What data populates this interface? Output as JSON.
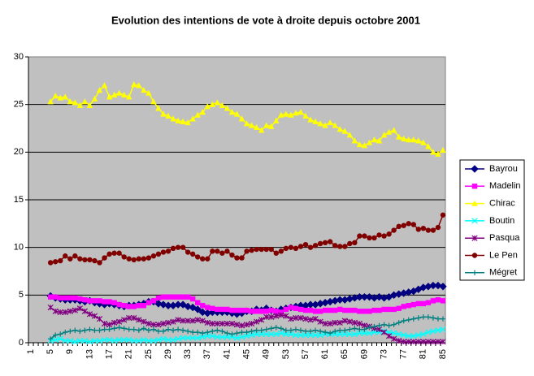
{
  "chart_data": {
    "type": "line",
    "title": "Evolution des intentions de vote à droite depuis octobre 2001",
    "categories": [
      "1",
      null,
      null,
      null,
      "5",
      null,
      null,
      null,
      "9",
      null,
      null,
      null,
      "13",
      null,
      null,
      null,
      "17",
      null,
      null,
      null,
      "21",
      null,
      null,
      null,
      "25",
      null,
      null,
      null,
      "29",
      null,
      null,
      null,
      "33",
      null,
      null,
      null,
      "37",
      null,
      null,
      null,
      "41",
      null,
      null,
      null,
      "45",
      null,
      null,
      null,
      "49",
      null,
      null,
      null,
      "53",
      null,
      null,
      null,
      "57",
      null,
      null,
      null,
      "61",
      null,
      null,
      null,
      "65",
      null,
      null,
      null,
      "69",
      null,
      null,
      null,
      "73",
      null,
      null,
      null,
      "77",
      null,
      null,
      null,
      "81",
      null,
      null,
      null,
      "85"
    ],
    "ylim": [
      0,
      30
    ],
    "yticks": [
      0,
      5,
      10,
      15,
      20,
      25,
      30
    ],
    "grid": true,
    "legend": "right",
    "series": [
      {
        "name": "Bayrou",
        "color": "#000080",
        "marker": "diamond",
        "values": [
          null,
          null,
          null,
          null,
          4.9,
          4.7,
          4.6,
          4.5,
          4.5,
          4.5,
          4.4,
          4.3,
          4.4,
          4.2,
          4.1,
          4.0,
          4.1,
          4.0,
          3.9,
          3.8,
          3.9,
          3.9,
          4.0,
          4.1,
          4.3,
          4.3,
          4.1,
          4.0,
          3.9,
          3.9,
          4.0,
          4.0,
          3.8,
          3.7,
          3.5,
          3.2,
          3.1,
          3.2,
          3.2,
          3.2,
          3.2,
          3.1,
          3.0,
          3.1,
          3.3,
          3.3,
          3.5,
          3.4,
          3.6,
          3.4,
          3.3,
          3.5,
          3.6,
          3.7,
          3.8,
          3.9,
          3.9,
          4.0,
          4.0,
          4.1,
          4.2,
          4.3,
          4.4,
          4.5,
          4.5,
          4.6,
          4.7,
          4.8,
          4.8,
          4.8,
          4.7,
          4.8,
          4.7,
          4.8,
          5.0,
          5.1,
          5.2,
          5.3,
          5.4,
          5.6,
          5.8,
          5.9,
          6.0,
          6.0,
          5.9
        ]
      },
      {
        "name": "Madelin",
        "color": "#ff00ff",
        "marker": "square",
        "values": [
          null,
          null,
          null,
          null,
          4.8,
          4.8,
          4.7,
          4.7,
          4.7,
          4.7,
          4.6,
          4.5,
          4.4,
          4.4,
          4.4,
          4.3,
          4.3,
          4.2,
          4.0,
          3.9,
          3.8,
          3.8,
          3.9,
          3.9,
          4.2,
          4.4,
          4.7,
          4.8,
          4.8,
          4.8,
          4.8,
          4.8,
          4.8,
          4.6,
          4.2,
          3.9,
          3.7,
          3.6,
          3.5,
          3.5,
          3.5,
          3.4,
          3.4,
          3.4,
          3.4,
          3.3,
          3.3,
          3.3,
          3.3,
          3.4,
          3.3,
          3.2,
          3.5,
          3.7,
          3.6,
          3.5,
          3.4,
          3.4,
          3.3,
          3.3,
          3.4,
          3.4,
          3.4,
          3.5,
          3.4,
          3.4,
          3.4,
          3.3,
          3.3,
          3.3,
          3.4,
          3.4,
          3.5,
          3.5,
          3.5,
          3.6,
          3.8,
          3.9,
          4.0,
          4.1,
          4.1,
          4.2,
          4.4,
          4.5,
          4.4
        ]
      },
      {
        "name": "Chirac",
        "color": "#ffff00",
        "marker": "triangle",
        "values": [
          null,
          null,
          null,
          null,
          25.3,
          25.9,
          25.7,
          25.8,
          25.3,
          25.2,
          24.9,
          25.3,
          24.9,
          25.6,
          26.5,
          27.0,
          25.8,
          26.0,
          26.2,
          26.0,
          25.8,
          27.1,
          27.0,
          26.5,
          26.2,
          25.3,
          24.6,
          24.0,
          23.8,
          23.5,
          23.3,
          23.2,
          23.1,
          23.5,
          23.9,
          24.2,
          24.8,
          25.0,
          25.2,
          24.9,
          24.6,
          24.2,
          24.0,
          23.5,
          23.0,
          22.8,
          22.6,
          22.3,
          22.8,
          22.7,
          23.3,
          23.9,
          24.0,
          23.9,
          24.1,
          24.2,
          23.8,
          23.4,
          23.2,
          23.0,
          22.8,
          23.1,
          22.8,
          22.4,
          22.2,
          21.8,
          21.2,
          20.8,
          20.7,
          21.0,
          21.3,
          21.2,
          21.8,
          22.1,
          22.3,
          21.6,
          21.4,
          21.3,
          21.3,
          21.2,
          21.0,
          20.6,
          20.0,
          19.8,
          20.2
        ]
      },
      {
        "name": "Boutin",
        "color": "#00ffff",
        "marker": "x",
        "values": [
          null,
          null,
          null,
          null,
          0.2,
          0.3,
          0.4,
          0.2,
          0.2,
          0.1,
          0.2,
          0.2,
          0.1,
          0.2,
          0.2,
          0.3,
          0.3,
          0.2,
          0.3,
          0.3,
          0.3,
          0.2,
          0.2,
          0.3,
          0.2,
          0.2,
          0.3,
          0.4,
          0.3,
          0.3,
          0.4,
          0.5,
          0.5,
          0.5,
          0.5,
          0.6,
          0.7,
          0.7,
          0.6,
          0.6,
          0.6,
          0.6,
          0.5,
          0.6,
          0.7,
          0.8,
          0.9,
          0.9,
          0.9,
          0.9,
          0.9,
          1.0,
          0.9,
          0.9,
          0.8,
          0.8,
          0.8,
          0.8,
          0.8,
          0.8,
          0.9,
          0.9,
          0.9,
          0.9,
          0.9,
          0.9,
          0.9,
          1.0,
          1.0,
          1.0,
          1.1,
          1.1,
          1.2,
          1.1,
          1.0,
          0.9,
          0.8,
          0.7,
          0.7,
          0.8,
          0.9,
          1.1,
          1.2,
          1.3,
          1.4
        ]
      },
      {
        "name": "Pasqua",
        "color": "#800080",
        "marker": "star",
        "values": [
          null,
          null,
          null,
          null,
          3.7,
          3.3,
          3.2,
          3.2,
          3.3,
          3.4,
          3.6,
          3.3,
          3.0,
          2.8,
          2.5,
          2.0,
          1.9,
          2.1,
          2.2,
          2.4,
          2.6,
          2.6,
          2.4,
          2.2,
          2.0,
          1.9,
          1.9,
          2.0,
          2.1,
          2.2,
          2.4,
          2.3,
          2.3,
          2.3,
          2.4,
          2.3,
          2.1,
          2.0,
          2.0,
          2.0,
          2.0,
          2.0,
          1.9,
          1.8,
          1.9,
          2.0,
          2.2,
          2.4,
          2.7,
          2.7,
          2.8,
          2.9,
          2.8,
          2.5,
          2.6,
          2.6,
          2.5,
          2.4,
          2.5,
          2.2,
          2.0,
          2.0,
          2.1,
          2.1,
          2.3,
          2.2,
          2.1,
          2.0,
          1.8,
          1.7,
          1.5,
          1.4,
          1.1,
          0.7,
          0.4,
          0.2,
          0.1,
          0.1,
          0.1,
          0.1,
          0.1,
          0.1,
          0.1,
          0.1,
          0.1
        ]
      },
      {
        "name": "Le Pen",
        "color": "#800000",
        "marker": "circle",
        "values": [
          null,
          null,
          null,
          null,
          8.4,
          8.5,
          8.6,
          9.1,
          8.8,
          9.1,
          8.8,
          8.7,
          8.7,
          8.6,
          8.4,
          8.9,
          9.3,
          9.4,
          9.4,
          9.0,
          8.8,
          8.7,
          8.8,
          8.8,
          8.9,
          9.1,
          9.3,
          9.5,
          9.6,
          9.9,
          10.0,
          10.0,
          9.5,
          9.3,
          9.0,
          8.8,
          8.8,
          9.6,
          9.6,
          9.4,
          9.6,
          9.2,
          8.9,
          8.9,
          9.6,
          9.7,
          9.8,
          9.8,
          9.8,
          9.8,
          9.4,
          9.6,
          9.9,
          10.0,
          9.9,
          10.1,
          10.3,
          10.0,
          10.2,
          10.4,
          10.5,
          10.6,
          10.2,
          10.1,
          10.1,
          10.4,
          10.5,
          11.2,
          11.2,
          11.0,
          11.0,
          11.3,
          11.2,
          11.4,
          11.8,
          12.2,
          12.3,
          12.5,
          12.4,
          11.9,
          12.0,
          11.8,
          11.8,
          12.1,
          13.4
        ]
      },
      {
        "name": "Mégret",
        "color": "#008080",
        "marker": "plus",
        "values": [
          null,
          null,
          null,
          null,
          0.4,
          0.8,
          0.9,
          1.1,
          1.2,
          1.3,
          1.2,
          1.3,
          1.4,
          1.3,
          1.3,
          1.4,
          1.4,
          1.5,
          1.6,
          1.5,
          1.4,
          1.4,
          1.3,
          1.5,
          1.3,
          1.4,
          1.2,
          1.2,
          1.4,
          1.3,
          1.4,
          1.3,
          1.2,
          1.1,
          1.1,
          1.0,
          1.1,
          1.2,
          1.3,
          1.2,
          1.0,
          0.9,
          1.0,
          1.1,
          1.1,
          1.2,
          1.3,
          1.3,
          1.4,
          1.5,
          1.6,
          1.5,
          1.3,
          1.3,
          1.4,
          1.3,
          1.2,
          1.2,
          1.3,
          1.2,
          1.1,
          1.0,
          1.2,
          1.3,
          1.3,
          1.4,
          1.5,
          1.4,
          1.4,
          1.6,
          1.7,
          1.8,
          1.9,
          1.8,
          1.9,
          2.1,
          2.3,
          2.4,
          2.5,
          2.6,
          2.7,
          2.7,
          2.6,
          2.5,
          2.5
        ]
      }
    ]
  }
}
